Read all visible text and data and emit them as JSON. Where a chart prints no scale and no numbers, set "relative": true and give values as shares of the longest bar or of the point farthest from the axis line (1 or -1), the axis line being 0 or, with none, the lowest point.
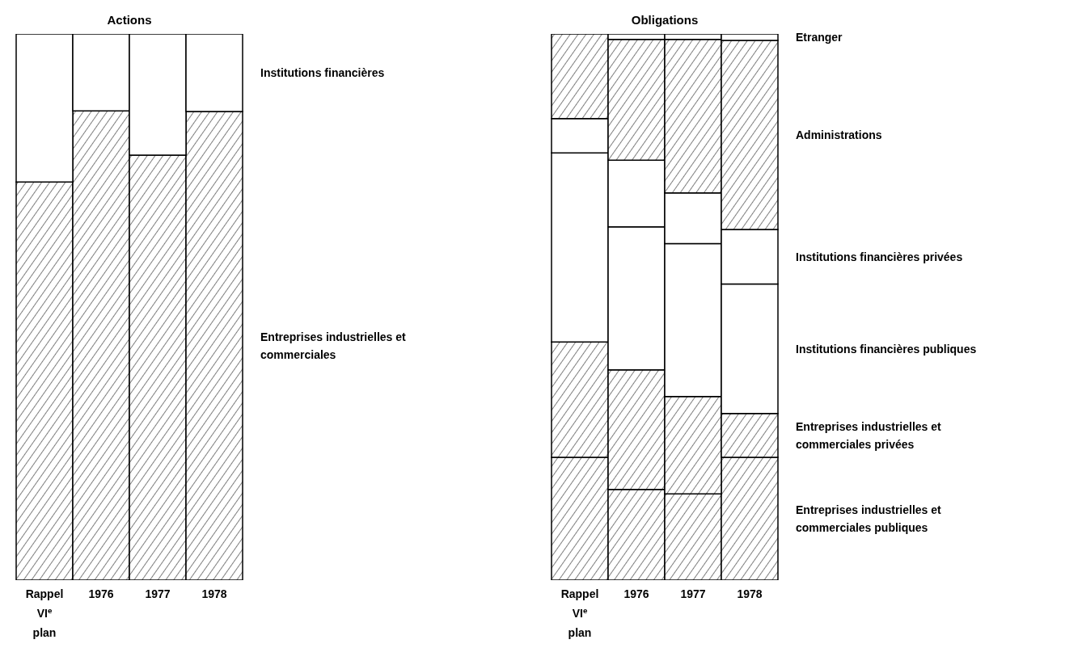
{
  "chart_data": [
    {
      "type": "bar",
      "title": "Actions",
      "categories": [
        "Rappel VI$^{e}$ plan",
        "1976",
        "1977",
        "1978"
      ],
      "stacked": true,
      "relative": true,
      "legend": "right",
      "series": [
        {
          "name": "Entreprises industrielles et commerciales",
          "color": "#000000",
          "values": [
            0.729,
            0.859,
            0.778,
            0.858
          ]
        },
        {
          "name": "Institutions financières",
          "color": "#ffffff",
          "values": [
            0.271,
            0.141,
            0.222,
            0.142
          ]
        }
      ]
    },
    {
      "type": "bar",
      "title": "Obligations",
      "categories": [
        "Rappel VI$^{e}$ plan",
        "1976",
        "1977",
        "1978"
      ],
      "stacked": true,
      "relative": true,
      "legend": "right",
      "series": [
        {
          "name": "Entreprises industrielles et commerciales publiques",
          "color": "#000000",
          "values": [
            0.225,
            0.166,
            0.158,
            0.225
          ]
        },
        {
          "name": "Entreprises industrielles et commerciales privées",
          "color": "#000000",
          "values": [
            0.211,
            0.219,
            0.178,
            0.08
          ]
        },
        {
          "name": "Institutions financières publiques",
          "color": "#ffffff",
          "values": [
            0.346,
            0.262,
            0.28,
            0.237
          ]
        },
        {
          "name": "Institutions financières privées",
          "color": "#ffffff",
          "values": [
            0.063,
            0.122,
            0.093,
            0.1
          ]
        },
        {
          "name": "Administrations",
          "color": "#000000",
          "values": [
            0.155,
            0.221,
            0.281,
            0.346
          ]
        },
        {
          "name": "Etranger",
          "color": "#ffffff",
          "values": [
            0,
            0.01,
            0.01,
            0.012
          ]
        }
      ]
    }
  ]
}
